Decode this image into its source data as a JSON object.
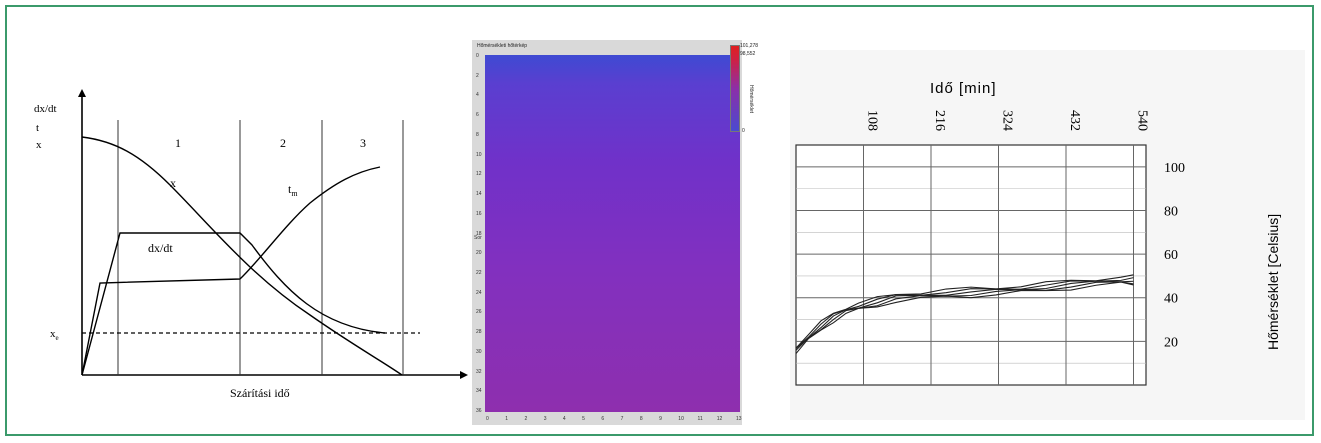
{
  "chart_data": [
    {
      "type": "line",
      "title": "",
      "xlabel": "Szárítási idő",
      "ylabels": [
        "dx/dt",
        "t",
        "x"
      ],
      "phase_labels": [
        "1",
        "2",
        "3"
      ],
      "xe_label": "x",
      "xe_sub": "e",
      "series": [
        {
          "name": "x",
          "label": "x"
        },
        {
          "name": "dx/dt",
          "label": "dx/dt"
        },
        {
          "name": "t_m",
          "label": "t",
          "label_sub": "m"
        }
      ]
    },
    {
      "type": "heatmap",
      "title": "Hőmérsékleti hőtérkép",
      "colorbar_max": "101,278",
      "colorbar_2": "98,552",
      "colorbar_min": "0",
      "colorbar_label": "Hőmérséklet",
      "ylabel": "Sor",
      "y_ticks": [
        "0",
        "2",
        "4",
        "6",
        "8",
        "10",
        "12",
        "14",
        "16",
        "18",
        "20",
        "22",
        "24",
        "26",
        "28",
        "30",
        "32",
        "34",
        "36"
      ],
      "x_ticks": [
        "0",
        "1",
        "2",
        "3",
        "4",
        "5",
        "6",
        "7",
        "8",
        "9",
        "10",
        "11",
        "12",
        "13"
      ],
      "color_top": "#3e4ad2",
      "color_bottom": "#8e2fae"
    },
    {
      "type": "line",
      "title": "",
      "xlabel": "Idő [min]",
      "ylabel": "Hőmérséklet [Celsius]",
      "x_ticks": [
        "108",
        "216",
        "324",
        "432",
        "540"
      ],
      "y_ticks": [
        "100",
        "80",
        "60",
        "40",
        "20"
      ],
      "xlim": [
        0,
        560
      ],
      "ylim": [
        0,
        110
      ],
      "series": [
        {
          "x": [
            0,
            20,
            40,
            60,
            80,
            100,
            130,
            160,
            200,
            240,
            280,
            320,
            360,
            400,
            440,
            480,
            520,
            540
          ],
          "y": [
            16,
            22,
            27,
            31,
            34,
            36,
            38,
            40,
            41,
            42,
            42.5,
            43,
            44,
            45,
            46,
            47,
            48,
            48
          ]
        }
      ]
    }
  ]
}
